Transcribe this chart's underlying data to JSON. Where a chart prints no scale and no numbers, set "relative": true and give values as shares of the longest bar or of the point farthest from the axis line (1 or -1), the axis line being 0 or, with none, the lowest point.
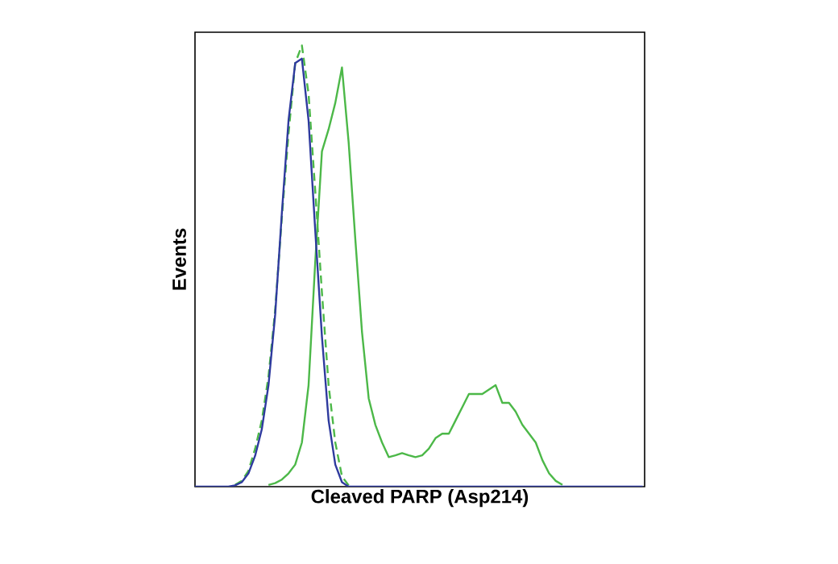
{
  "chart_data": {
    "type": "line",
    "relative": true,
    "xlabel": "Cleaved PARP (Asp214)",
    "ylabel": "Events",
    "tick_labels": false,
    "marker": "none",
    "categories": [
      null,
      null,
      null,
      null,
      null,
      null,
      null,
      null,
      null,
      null,
      null,
      null,
      null,
      null,
      null,
      null,
      null,
      null,
      null,
      null,
      null,
      null,
      null,
      null,
      null,
      null,
      null,
      null,
      null,
      null,
      null,
      null,
      null,
      null,
      null,
      null,
      null,
      null,
      null,
      null,
      null,
      null,
      null,
      null,
      null,
      null,
      null,
      null,
      null,
      null,
      null,
      null,
      null,
      null,
      null,
      null,
      null,
      null,
      null,
      null,
      null,
      null,
      null,
      null,
      null,
      null,
      null,
      null
    ],
    "series": [
      {
        "color": "#4cb848",
        "line_style": "solid",
        "values": [
          null,
          null,
          null,
          null,
          null,
          null,
          null,
          null,
          null,
          null,
          null,
          0.004,
          0.008,
          0.016,
          0.03,
          0.05,
          0.1,
          0.23,
          0.51,
          0.76,
          0.81,
          0.87,
          0.95,
          0.78,
          0.56,
          0.35,
          0.2,
          0.14,
          0.1,
          0.067,
          0.071,
          0.076,
          0.071,
          0.067,
          0.071,
          0.086,
          0.11,
          0.12,
          0.12,
          0.15,
          0.18,
          0.21,
          0.21,
          0.21,
          0.22,
          0.23,
          0.19,
          0.19,
          0.17,
          0.14,
          0.12,
          0.1,
          0.06,
          0.03,
          0.013,
          0.004,
          null,
          null,
          null,
          null,
          null,
          null,
          null,
          null,
          null,
          null,
          null,
          null
        ]
      },
      {
        "color": "#4cb848",
        "line_style": "dashed",
        "values": [
          null,
          null,
          null,
          null,
          null,
          null,
          0.004,
          0.013,
          0.036,
          0.086,
          0.15,
          0.25,
          0.4,
          0.61,
          0.8,
          0.96,
          1.0,
          0.89,
          0.67,
          0.44,
          0.23,
          0.1,
          0.023,
          0.003,
          null,
          null,
          null,
          null,
          null,
          null,
          null,
          null,
          null,
          null,
          null,
          null,
          null,
          null,
          null,
          null,
          null,
          null,
          null,
          null,
          null,
          null,
          null,
          null,
          null,
          null,
          null,
          null,
          null,
          null,
          null,
          null,
          null,
          null,
          null,
          null,
          null,
          null,
          null,
          null,
          null,
          null,
          null,
          null
        ]
      },
      {
        "color": "#2e3a9e",
        "line_style": "solid",
        "values": [
          0,
          0,
          0,
          0,
          0,
          0,
          0.003,
          0.01,
          0.03,
          0.07,
          0.13,
          0.23,
          0.39,
          0.62,
          0.83,
          0.96,
          0.97,
          0.83,
          0.58,
          0.34,
          0.15,
          0.05,
          0.01,
          0,
          0,
          0,
          0,
          0,
          0,
          0,
          0,
          0,
          0,
          0,
          0,
          0,
          0,
          0,
          0,
          0,
          0,
          0,
          0,
          0,
          0,
          0,
          0,
          0,
          0,
          0,
          0,
          0,
          0,
          0,
          0,
          0,
          0,
          0,
          0,
          0,
          0,
          0,
          0,
          0,
          0,
          0,
          0,
          0
        ]
      }
    ]
  }
}
